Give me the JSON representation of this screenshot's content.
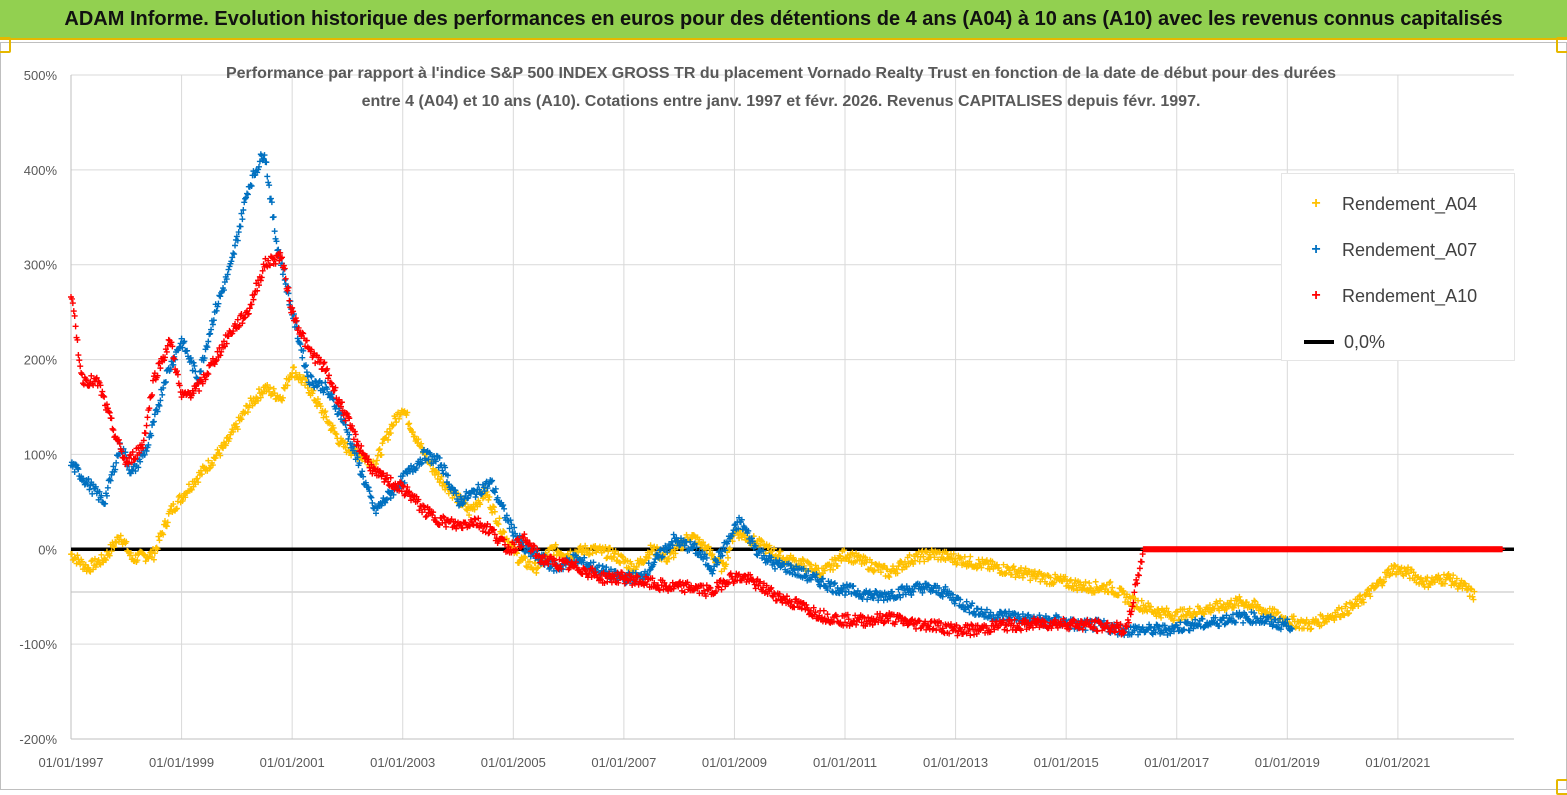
{
  "header": {
    "title": "ADAM Informe. Evolution historique des performances en euros pour des détentions de 4 ans (A04) à 10 ans (A10) avec les revenus connus capitalisés"
  },
  "chart_data": {
    "type": "scatter",
    "title_line1": "Performance par rapport à l'indice S&P 500 INDEX GROSS TR  du placement Vornado Realty Trust en fonction de la date de début pour des durées",
    "title_line2": "entre 4 (A04) et 10 ans (A10). Cotations entre janv. 1997 et févr. 2026. Revenus CAPITALISES depuis févr. 1997.",
    "y_ticks": [
      "500%",
      "400%",
      "300%",
      "200%",
      "100%",
      "0%",
      "-100%",
      "-200%"
    ],
    "ylim": [
      -200,
      500
    ],
    "x_ticks": [
      "01/01/1997",
      "01/01/1999",
      "01/01/2001",
      "01/01/2003",
      "01/01/2005",
      "01/01/2007",
      "01/01/2009",
      "01/01/2011",
      "01/01/2013",
      "01/01/2015",
      "01/01/2017",
      "01/01/2019",
      "01/01/2021"
    ],
    "xlim": [
      1997.0,
      2023.1
    ],
    "legend": {
      "position": "top-right",
      "items": [
        "Rendement_A04",
        "Rendement_A07",
        "Rendement_A10",
        "0,0%"
      ]
    },
    "colors": {
      "A04": "#ffc000",
      "A07": "#0070c0",
      "A10": "#ff0000",
      "zero": "#000000"
    },
    "grid": "vertical and horizontal",
    "series": [
      {
        "name": "Rendement_A04",
        "points": [
          [
            1997.0,
            -5
          ],
          [
            1997.3,
            -20
          ],
          [
            1997.6,
            -10
          ],
          [
            1997.9,
            15
          ],
          [
            1998.1,
            -10
          ],
          [
            1998.5,
            -5
          ],
          [
            1998.8,
            40
          ],
          [
            1999.2,
            70
          ],
          [
            1999.5,
            90
          ],
          [
            1999.8,
            110
          ],
          [
            2000.2,
            150
          ],
          [
            2000.5,
            170
          ],
          [
            2000.8,
            160
          ],
          [
            2001.0,
            190
          ],
          [
            2001.3,
            170
          ],
          [
            2001.6,
            140
          ],
          [
            2001.9,
            110
          ],
          [
            2002.2,
            100
          ],
          [
            2002.5,
            90
          ],
          [
            2002.8,
            130
          ],
          [
            2003.0,
            150
          ],
          [
            2003.3,
            110
          ],
          [
            2003.6,
            80
          ],
          [
            2003.9,
            60
          ],
          [
            2004.2,
            40
          ],
          [
            2004.5,
            60
          ],
          [
            2004.8,
            20
          ],
          [
            2005.1,
            -10
          ],
          [
            2005.4,
            -20
          ],
          [
            2005.7,
            0
          ],
          [
            2006.0,
            -5
          ],
          [
            2006.4,
            0
          ],
          [
            2006.8,
            -5
          ],
          [
            2007.2,
            -20
          ],
          [
            2007.5,
            0
          ],
          [
            2007.8,
            -10
          ],
          [
            2008.2,
            15
          ],
          [
            2008.5,
            0
          ],
          [
            2008.8,
            -20
          ],
          [
            2009.0,
            20
          ],
          [
            2009.3,
            10
          ],
          [
            2009.6,
            0
          ],
          [
            2009.9,
            -10
          ],
          [
            2010.2,
            -15
          ],
          [
            2010.6,
            -25
          ],
          [
            2011.0,
            -5
          ],
          [
            2011.4,
            -15
          ],
          [
            2011.8,
            -25
          ],
          [
            2012.2,
            -10
          ],
          [
            2012.6,
            -5
          ],
          [
            2013.0,
            -10
          ],
          [
            2013.4,
            -15
          ],
          [
            2013.8,
            -20
          ],
          [
            2014.2,
            -25
          ],
          [
            2014.6,
            -30
          ],
          [
            2015.0,
            -35
          ],
          [
            2015.4,
            -40
          ],
          [
            2015.8,
            -40
          ],
          [
            2016.2,
            -55
          ],
          [
            2016.6,
            -65
          ],
          [
            2017.0,
            -70
          ],
          [
            2017.4,
            -65
          ],
          [
            2017.8,
            -60
          ],
          [
            2018.2,
            -55
          ],
          [
            2018.6,
            -65
          ],
          [
            2019.0,
            -75
          ],
          [
            2019.4,
            -80
          ],
          [
            2019.8,
            -70
          ],
          [
            2020.2,
            -60
          ],
          [
            2020.6,
            -40
          ],
          [
            2020.9,
            -20
          ],
          [
            2021.2,
            -25
          ],
          [
            2021.5,
            -35
          ],
          [
            2021.9,
            -30
          ],
          [
            2022.2,
            -40
          ],
          [
            2022.4,
            -50
          ]
        ]
      },
      {
        "name": "Rendement_A07",
        "points": [
          [
            1997.0,
            90
          ],
          [
            1997.3,
            70
          ],
          [
            1997.6,
            50
          ],
          [
            1997.9,
            110
          ],
          [
            1998.1,
            80
          ],
          [
            1998.4,
            110
          ],
          [
            1998.7,
            180
          ],
          [
            1999.0,
            220
          ],
          [
            1999.3,
            180
          ],
          [
            1999.6,
            250
          ],
          [
            1999.9,
            300
          ],
          [
            2000.2,
            380
          ],
          [
            2000.5,
            420
          ],
          [
            2000.7,
            330
          ],
          [
            2001.0,
            250
          ],
          [
            2001.3,
            180
          ],
          [
            2001.6,
            170
          ],
          [
            2001.9,
            140
          ],
          [
            2002.2,
            90
          ],
          [
            2002.5,
            40
          ],
          [
            2002.8,
            60
          ],
          [
            2003.1,
            80
          ],
          [
            2003.4,
            100
          ],
          [
            2003.7,
            90
          ],
          [
            2004.0,
            50
          ],
          [
            2004.3,
            60
          ],
          [
            2004.6,
            70
          ],
          [
            2004.9,
            30
          ],
          [
            2005.2,
            0
          ],
          [
            2005.5,
            -10
          ],
          [
            2005.8,
            -20
          ],
          [
            2006.1,
            -10
          ],
          [
            2006.5,
            -20
          ],
          [
            2006.9,
            -30
          ],
          [
            2007.3,
            -30
          ],
          [
            2007.6,
            -10
          ],
          [
            2007.9,
            10
          ],
          [
            2008.3,
            0
          ],
          [
            2008.6,
            -20
          ],
          [
            2008.9,
            10
          ],
          [
            2009.1,
            30
          ],
          [
            2009.4,
            0
          ],
          [
            2009.7,
            -15
          ],
          [
            2010.0,
            -20
          ],
          [
            2010.4,
            -30
          ],
          [
            2010.8,
            -40
          ],
          [
            2011.2,
            -45
          ],
          [
            2011.6,
            -50
          ],
          [
            2012.0,
            -45
          ],
          [
            2012.4,
            -40
          ],
          [
            2012.8,
            -45
          ],
          [
            2013.2,
            -60
          ],
          [
            2013.6,
            -70
          ],
          [
            2014.0,
            -70
          ],
          [
            2014.4,
            -75
          ],
          [
            2014.8,
            -75
          ],
          [
            2015.2,
            -80
          ],
          [
            2015.6,
            -80
          ],
          [
            2016.0,
            -85
          ],
          [
            2016.4,
            -85
          ],
          [
            2016.8,
            -85
          ],
          [
            2017.2,
            -80
          ],
          [
            2017.6,
            -78
          ],
          [
            2018.0,
            -72
          ],
          [
            2018.4,
            -72
          ],
          [
            2018.8,
            -78
          ],
          [
            2019.1,
            -80
          ]
        ]
      },
      {
        "name": "Rendement_A10",
        "points": [
          [
            1997.0,
            270
          ],
          [
            1997.2,
            180
          ],
          [
            1997.5,
            175
          ],
          [
            1997.8,
            120
          ],
          [
            1998.0,
            90
          ],
          [
            1998.3,
            110
          ],
          [
            1998.5,
            180
          ],
          [
            1998.8,
            220
          ],
          [
            1999.0,
            160
          ],
          [
            1999.3,
            170
          ],
          [
            1999.6,
            200
          ],
          [
            1999.9,
            230
          ],
          [
            2000.2,
            250
          ],
          [
            2000.5,
            300
          ],
          [
            2000.8,
            310
          ],
          [
            2001.0,
            250
          ],
          [
            2001.3,
            210
          ],
          [
            2001.6,
            190
          ],
          [
            2001.9,
            150
          ],
          [
            2002.2,
            110
          ],
          [
            2002.5,
            80
          ],
          [
            2002.8,
            70
          ],
          [
            2003.1,
            60
          ],
          [
            2003.4,
            40
          ],
          [
            2003.7,
            30
          ],
          [
            2004.0,
            25
          ],
          [
            2004.3,
            30
          ],
          [
            2004.6,
            20
          ],
          [
            2004.9,
            0
          ],
          [
            2005.2,
            10
          ],
          [
            2005.5,
            -10
          ],
          [
            2005.8,
            -15
          ],
          [
            2006.2,
            -20
          ],
          [
            2006.6,
            -30
          ],
          [
            2007.0,
            -30
          ],
          [
            2007.4,
            -35
          ],
          [
            2007.8,
            -40
          ],
          [
            2008.2,
            -40
          ],
          [
            2008.6,
            -45
          ],
          [
            2008.9,
            -30
          ],
          [
            2009.2,
            -30
          ],
          [
            2009.5,
            -40
          ],
          [
            2009.8,
            -50
          ],
          [
            2010.2,
            -60
          ],
          [
            2010.6,
            -70
          ],
          [
            2011.0,
            -75
          ],
          [
            2011.4,
            -75
          ],
          [
            2011.8,
            -72
          ],
          [
            2012.2,
            -78
          ],
          [
            2012.6,
            -80
          ],
          [
            2013.0,
            -85
          ],
          [
            2013.4,
            -85
          ],
          [
            2013.8,
            -80
          ],
          [
            2014.2,
            -80
          ],
          [
            2014.6,
            -78
          ],
          [
            2015.0,
            -78
          ],
          [
            2015.4,
            -80
          ],
          [
            2015.8,
            -82
          ],
          [
            2016.1,
            -85
          ],
          [
            2016.4,
            0
          ],
          [
            2017.0,
            0
          ],
          [
            2018.0,
            0
          ],
          [
            2019.0,
            0
          ],
          [
            2020.0,
            0
          ],
          [
            2021.0,
            0
          ],
          [
            2022.0,
            0
          ],
          [
            2022.9,
            0
          ]
        ]
      }
    ]
  }
}
